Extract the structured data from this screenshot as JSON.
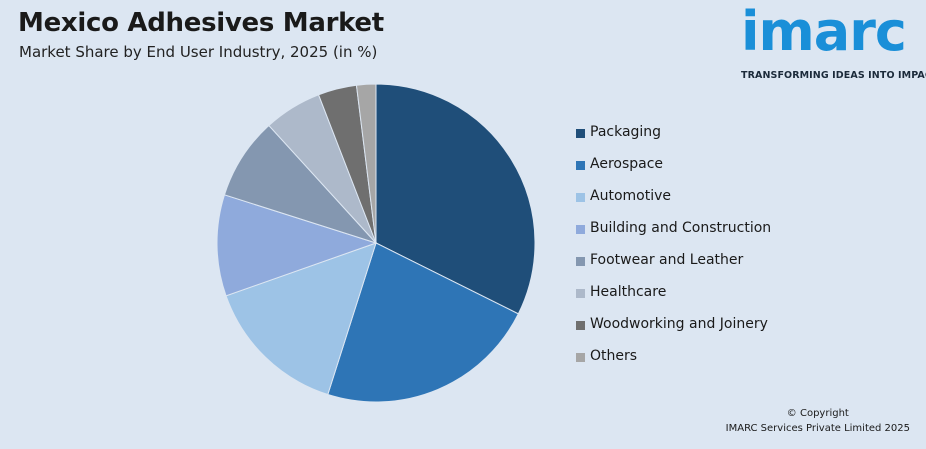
{
  "header": {
    "title": "Mexico Adhesives Market",
    "subtitle": "Market Share by End User Industry, 2025 (in %)"
  },
  "logo": {
    "word": "imarc",
    "tagline": "TRANSFORMING IDEAS INTO IMPACT",
    "color": "#1a8fd8"
  },
  "chart_data": {
    "type": "pie",
    "title": "Mexico Adhesives Market",
    "subtitle": "Market Share by End User Industry, 2025 (in %)",
    "legend_placement": "right",
    "data_labels": false,
    "slices": [
      {
        "label": "Packaging",
        "value": 33,
        "color": "#1f4e79"
      },
      {
        "label": "Aerospace",
        "value": 23,
        "color": "#2e75b6"
      },
      {
        "label": "Automotive",
        "value": 15,
        "color": "#9dc3e6"
      },
      {
        "label": "Building and Construction",
        "value": 10.5,
        "color": "#8faadc"
      },
      {
        "label": "Footwear and Leather",
        "value": 8.5,
        "color": "#8497b0"
      },
      {
        "label": "Healthcare",
        "value": 6,
        "color": "#adb9ca"
      },
      {
        "label": "Woodworking and Joinery",
        "value": 4,
        "color": "#6f6f6f"
      },
      {
        "label": "Others",
        "value": 2,
        "color": "#a6a6a6"
      }
    ]
  },
  "footer": {
    "copyright_line1": "© Copyright",
    "copyright_line2": "IMARC Services Private Limited 2025"
  }
}
